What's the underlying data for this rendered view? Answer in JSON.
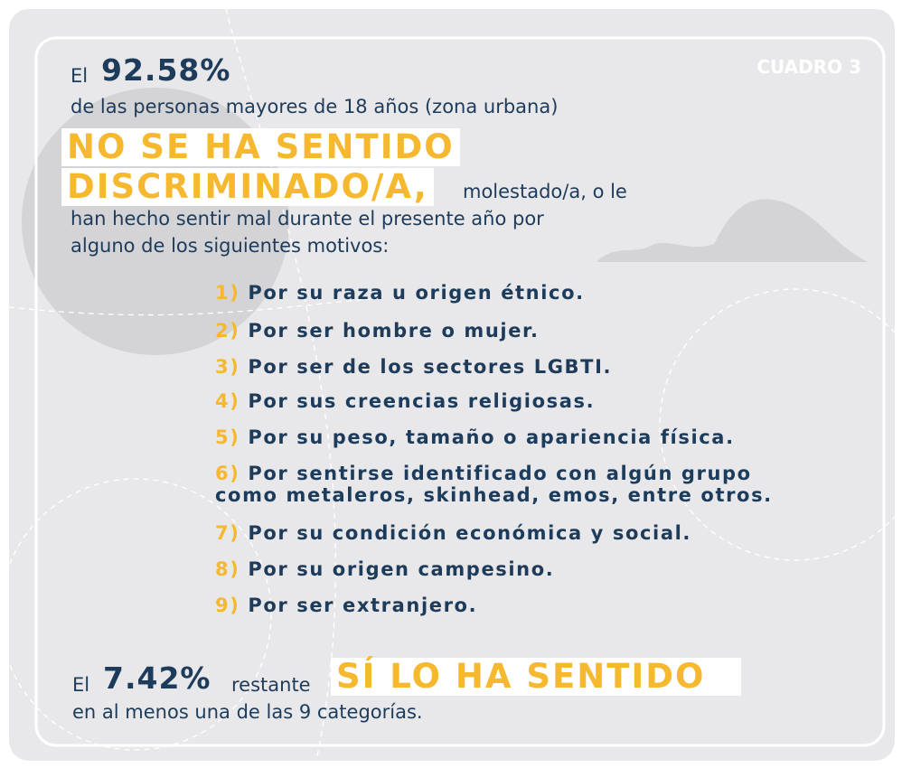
{
  "label": "CUADRO 3",
  "intro": {
    "prefix": "El",
    "percent": "92.58%",
    "population": "de las personas mayores de 18 años (zona urbana)",
    "headline": [
      "NO SE HA SENTIDO",
      "DISCRIMINADO/A,"
    ],
    "continuation": [
      "molestado/a, o le",
      "han hecho sentir mal durante el presente año por",
      "alguno de los siguientes motivos:"
    ]
  },
  "motives": [
    {
      "number": "1)",
      "text": [
        "Por su raza u origen étnico."
      ]
    },
    {
      "number": "2)",
      "text": [
        "Por ser hombre o mujer."
      ]
    },
    {
      "number": "3)",
      "text": [
        "Por ser de los sectores LGBTI."
      ]
    },
    {
      "number": "4)",
      "text": [
        "Por sus creencias religiosas."
      ]
    },
    {
      "number": "5)",
      "text": [
        "Por su peso, tamaño o apariencia física."
      ]
    },
    {
      "number": "6)",
      "text": [
        "Por sentirse identificado con algún grupo",
        "como metaleros, skinhead, emos, entre otros."
      ]
    },
    {
      "number": "7)",
      "text": [
        "Por su condición económica y social."
      ]
    },
    {
      "number": "8)",
      "text": [
        "Por su origen campesino."
      ]
    },
    {
      "number": "9)",
      "text": [
        "Por ser extranjero."
      ]
    }
  ],
  "footer": {
    "prefix": "El",
    "percent": "7.42%",
    "suffix": "restante",
    "headline": "SÍ LO HA SENTIDO",
    "detail": "en al menos una de las 9 categorías."
  }
}
